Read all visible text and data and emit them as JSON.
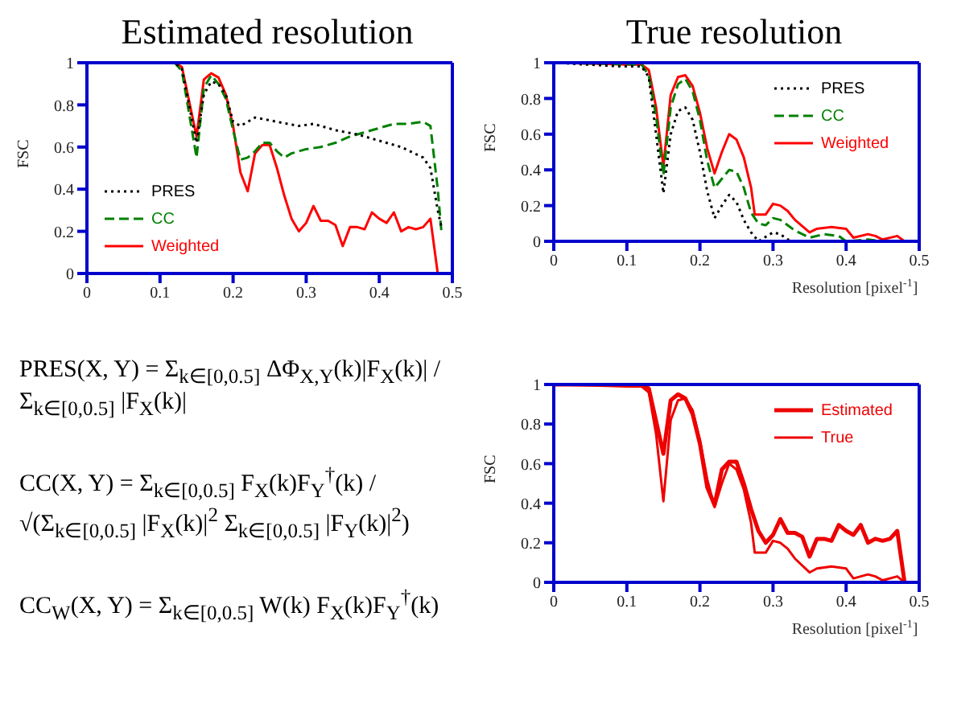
{
  "chart_data": [
    {
      "type": "line",
      "title": "Estimated resolution",
      "ylabel": "FSC",
      "xlim": [
        0,
        0.5
      ],
      "xticks": [
        0,
        0.1,
        0.2,
        0.3,
        0.4,
        0.5
      ],
      "ylim": [
        0,
        1
      ],
      "yticks": [
        0,
        0.2,
        0.4,
        0.6,
        0.8,
        1
      ],
      "legend": "bottom left",
      "series": [
        {
          "name": "PRES",
          "color": "#000000",
          "line_style": "dotted",
          "x": [
            0,
            0.12,
            0.13,
            0.15,
            0.16,
            0.17,
            0.18,
            0.19,
            0.2,
            0.21,
            0.23,
            0.26,
            0.29,
            0.31,
            0.34,
            0.37,
            0.4,
            0.43,
            0.46,
            0.47,
            0.48,
            0.485
          ],
          "values": [
            1,
            1,
            0.97,
            0.62,
            0.85,
            0.91,
            0.9,
            0.85,
            0.72,
            0.7,
            0.74,
            0.72,
            0.7,
            0.71,
            0.68,
            0.66,
            0.63,
            0.6,
            0.55,
            0.5,
            0.3,
            0.22
          ]
        },
        {
          "name": "CC",
          "color": "#008000",
          "line_style": "dashed",
          "x": [
            0,
            0.12,
            0.13,
            0.15,
            0.16,
            0.17,
            0.18,
            0.19,
            0.2,
            0.21,
            0.22,
            0.23,
            0.24,
            0.25,
            0.26,
            0.27,
            0.28,
            0.3,
            0.32,
            0.34,
            0.36,
            0.38,
            0.4,
            0.42,
            0.44,
            0.46,
            0.47,
            0.48,
            0.485
          ],
          "values": [
            1,
            1,
            0.96,
            0.55,
            0.88,
            0.94,
            0.9,
            0.83,
            0.68,
            0.54,
            0.55,
            0.58,
            0.62,
            0.62,
            0.58,
            0.55,
            0.57,
            0.59,
            0.6,
            0.62,
            0.65,
            0.67,
            0.69,
            0.71,
            0.71,
            0.72,
            0.7,
            0.4,
            0.2
          ]
        },
        {
          "name": "Weighted",
          "color": "#ff0000",
          "line_style": "solid",
          "x": [
            0,
            0.12,
            0.13,
            0.15,
            0.16,
            0.17,
            0.18,
            0.19,
            0.2,
            0.21,
            0.22,
            0.23,
            0.24,
            0.25,
            0.26,
            0.27,
            0.28,
            0.29,
            0.3,
            0.31,
            0.32,
            0.33,
            0.34,
            0.35,
            0.36,
            0.37,
            0.38,
            0.39,
            0.4,
            0.41,
            0.42,
            0.43,
            0.44,
            0.45,
            0.46,
            0.47,
            0.48
          ],
          "values": [
            1,
            1,
            0.98,
            0.65,
            0.92,
            0.95,
            0.93,
            0.85,
            0.7,
            0.48,
            0.39,
            0.57,
            0.61,
            0.61,
            0.5,
            0.37,
            0.26,
            0.2,
            0.24,
            0.32,
            0.25,
            0.25,
            0.23,
            0.13,
            0.22,
            0.22,
            0.21,
            0.29,
            0.26,
            0.24,
            0.29,
            0.2,
            0.22,
            0.21,
            0.22,
            0.26,
            0
          ]
        }
      ]
    },
    {
      "type": "line",
      "title": "True resolution",
      "xlabel": "Resolution [pixel$^{-1}$]",
      "ylabel": "FSC",
      "xlim": [
        0,
        0.5
      ],
      "xticks": [
        0,
        0.1,
        0.2,
        0.3,
        0.4,
        0.5
      ],
      "ylim": [
        0,
        1
      ],
      "yticks": [
        0,
        0.2,
        0.4,
        0.6,
        0.8,
        1
      ],
      "legend": "top right",
      "series": [
        {
          "name": "PRES",
          "color": "#000000",
          "line_style": "dotted",
          "x": [
            0,
            0.09,
            0.12,
            0.13,
            0.14,
            0.15,
            0.16,
            0.17,
            0.18,
            0.19,
            0.2,
            0.21,
            0.22,
            0.23,
            0.24,
            0.25,
            0.26,
            0.27,
            0.28,
            0.3,
            0.31,
            0.32,
            0.33
          ],
          "values": [
            1,
            0.98,
            0.98,
            0.92,
            0.6,
            0.27,
            0.6,
            0.73,
            0.75,
            0.68,
            0.5,
            0.28,
            0.13,
            0.2,
            0.26,
            0.22,
            0.12,
            0.05,
            0,
            0.05,
            0.04,
            0.01,
            0
          ]
        },
        {
          "name": "CC",
          "color": "#008000",
          "line_style": "dashed",
          "x": [
            0,
            0.12,
            0.13,
            0.14,
            0.15,
            0.16,
            0.17,
            0.18,
            0.19,
            0.2,
            0.21,
            0.22,
            0.23,
            0.24,
            0.25,
            0.26,
            0.27,
            0.28,
            0.29,
            0.3,
            0.31,
            0.32,
            0.33,
            0.35,
            0.37,
            0.39,
            0.4,
            0.43,
            0.45
          ],
          "values": [
            1,
            0.99,
            0.93,
            0.7,
            0.37,
            0.75,
            0.88,
            0.91,
            0.84,
            0.68,
            0.45,
            0.3,
            0.35,
            0.4,
            0.39,
            0.3,
            0.16,
            0.1,
            0.09,
            0.13,
            0.12,
            0.09,
            0.06,
            0.02,
            0.04,
            0.03,
            0,
            0.01,
            0
          ]
        },
        {
          "name": "Weighted",
          "color": "#ff0000",
          "line_style": "solid",
          "x": [
            0,
            0.1,
            0.12,
            0.13,
            0.14,
            0.15,
            0.16,
            0.17,
            0.18,
            0.19,
            0.2,
            0.21,
            0.22,
            0.23,
            0.24,
            0.25,
            0.26,
            0.27,
            0.275,
            0.29,
            0.3,
            0.31,
            0.32,
            0.33,
            0.35,
            0.36,
            0.38,
            0.4,
            0.41,
            0.43,
            0.44,
            0.45,
            0.47,
            0.48
          ],
          "values": [
            1,
            0.99,
            0.99,
            0.96,
            0.75,
            0.42,
            0.82,
            0.92,
            0.93,
            0.87,
            0.72,
            0.52,
            0.38,
            0.5,
            0.6,
            0.57,
            0.47,
            0.3,
            0.15,
            0.15,
            0.21,
            0.2,
            0.17,
            0.12,
            0.05,
            0.07,
            0.08,
            0.07,
            0.02,
            0.04,
            0.03,
            0.01,
            0.03,
            0
          ]
        }
      ]
    },
    {
      "type": "other",
      "annotations": [
        "PRES(X, Y) = Σ$_{k∈[0,0.5]}$ ΔΦ$_{X,Y}$(k)|F$_{X}$(k)| / Σ$_{k∈[0,0.5]}$ |F$_{X}$(k)|",
        "CC(X, Y) = Σ$_{k∈[0,0.5]}$ F$_{X}$(k)F$_{Y}$$^{†}$(k) / √(Σ$_{k∈[0,0.5]}$ |F$_{X}$(k)|$^{2}$ Σ$_{k∈[0,0.5]}$ |F$_{Y}$(k)|$^{2}$)",
        "CC$_{W}$(X, Y) = Σ$_{k∈[0,0.5]}$ W(k) F$_{X}$(k)F$_{Y}$$^{†}$(k)"
      ]
    },
    {
      "type": "line",
      "xlabel": "Resolution [pixel$^{-1}$]",
      "ylabel": "FSC",
      "xlim": [
        0,
        0.5
      ],
      "xticks": [
        0,
        0.1,
        0.2,
        0.3,
        0.4,
        0.5
      ],
      "ylim": [
        0,
        1
      ],
      "yticks": [
        0,
        0.2,
        0.4,
        0.6,
        0.8,
        1
      ],
      "legend": "top right",
      "series": [
        {
          "name": "Estimated",
          "color": "#ee0000",
          "line_style": "solid",
          "x": [
            0,
            0.12,
            0.13,
            0.15,
            0.16,
            0.17,
            0.18,
            0.19,
            0.2,
            0.21,
            0.22,
            0.23,
            0.24,
            0.25,
            0.26,
            0.27,
            0.28,
            0.29,
            0.3,
            0.31,
            0.32,
            0.33,
            0.34,
            0.35,
            0.36,
            0.37,
            0.38,
            0.39,
            0.4,
            0.41,
            0.42,
            0.43,
            0.44,
            0.45,
            0.46,
            0.47,
            0.48
          ],
          "values": [
            1,
            1,
            0.98,
            0.65,
            0.92,
            0.95,
            0.93,
            0.85,
            0.7,
            0.48,
            0.39,
            0.57,
            0.61,
            0.61,
            0.5,
            0.37,
            0.26,
            0.2,
            0.24,
            0.32,
            0.25,
            0.25,
            0.23,
            0.13,
            0.22,
            0.22,
            0.21,
            0.29,
            0.26,
            0.24,
            0.29,
            0.2,
            0.22,
            0.21,
            0.22,
            0.26,
            0
          ]
        },
        {
          "name": "True",
          "color": "#ee0000",
          "line_style": "solid",
          "x": [
            0,
            0.1,
            0.12,
            0.13,
            0.14,
            0.15,
            0.16,
            0.17,
            0.18,
            0.19,
            0.2,
            0.21,
            0.22,
            0.23,
            0.24,
            0.25,
            0.26,
            0.27,
            0.275,
            0.29,
            0.3,
            0.31,
            0.32,
            0.33,
            0.35,
            0.36,
            0.38,
            0.4,
            0.41,
            0.43,
            0.44,
            0.45,
            0.47,
            0.48
          ],
          "values": [
            1,
            0.99,
            0.99,
            0.96,
            0.75,
            0.41,
            0.82,
            0.92,
            0.93,
            0.87,
            0.72,
            0.52,
            0.38,
            0.5,
            0.6,
            0.57,
            0.47,
            0.3,
            0.15,
            0.15,
            0.21,
            0.2,
            0.17,
            0.12,
            0.05,
            0.07,
            0.08,
            0.07,
            0.02,
            0.04,
            0.03,
            0.01,
            0.03,
            0
          ]
        }
      ]
    }
  ]
}
